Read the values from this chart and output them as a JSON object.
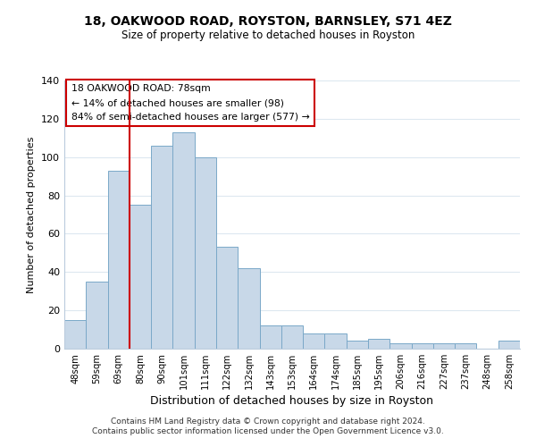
{
  "title": "18, OAKWOOD ROAD, ROYSTON, BARNSLEY, S71 4EZ",
  "subtitle": "Size of property relative to detached houses in Royston",
  "xlabel": "Distribution of detached houses by size in Royston",
  "ylabel": "Number of detached properties",
  "bar_labels": [
    "48sqm",
    "59sqm",
    "69sqm",
    "80sqm",
    "90sqm",
    "101sqm",
    "111sqm",
    "122sqm",
    "132sqm",
    "143sqm",
    "153sqm",
    "164sqm",
    "174sqm",
    "185sqm",
    "195sqm",
    "206sqm",
    "216sqm",
    "227sqm",
    "237sqm",
    "248sqm",
    "258sqm"
  ],
  "bar_values": [
    15,
    35,
    93,
    75,
    106,
    113,
    100,
    53,
    42,
    12,
    12,
    8,
    8,
    4,
    5,
    3,
    3,
    3,
    3,
    0,
    4
  ],
  "bar_color": "#c8d8e8",
  "bar_edge_color": "#7aa8c8",
  "vline_x_index": 3,
  "vline_color": "#cc0000",
  "annotation_title": "18 OAKWOOD ROAD: 78sqm",
  "annotation_line1": "← 14% of detached houses are smaller (98)",
  "annotation_line2": "84% of semi-detached houses are larger (577) →",
  "annotation_box_color": "#ffffff",
  "annotation_box_edge": "#cc0000",
  "ylim": [
    0,
    140
  ],
  "yticks": [
    0,
    20,
    40,
    60,
    80,
    100,
    120,
    140
  ],
  "footer1": "Contains HM Land Registry data © Crown copyright and database right 2024.",
  "footer2": "Contains public sector information licensed under the Open Government Licence v3.0.",
  "background_color": "#ffffff",
  "grid_color": "#dde8f0"
}
